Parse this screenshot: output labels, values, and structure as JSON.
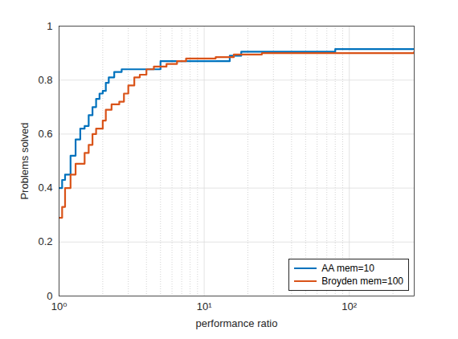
{
  "chart_data": {
    "type": "line",
    "x_label": "performance ratio",
    "y_label": "Problems solved",
    "log": "x",
    "grid": true,
    "legend": "southeast",
    "xlim": [
      1,
      280
    ],
    "xticks": [
      {
        "value": 1,
        "label": "10⁰"
      },
      {
        "value": 10,
        "label": "10¹"
      },
      {
        "value": 100,
        "label": "10²"
      }
    ],
    "ylim": [
      0,
      1
    ],
    "yticks": [
      0,
      0.2,
      0.4,
      0.6,
      0.8,
      1
    ],
    "series": [
      {
        "name": "AA mem=10",
        "color": "#0072bd",
        "line_style": "step",
        "x": [
          1,
          1.05,
          1.1,
          1.2,
          1.3,
          1.4,
          1.5,
          1.6,
          1.7,
          1.8,
          1.9,
          2.0,
          2.1,
          2.2,
          2.4,
          2.7,
          5.0,
          15,
          18,
          80,
          280
        ],
        "values": [
          0.4,
          0.43,
          0.45,
          0.52,
          0.58,
          0.62,
          0.63,
          0.67,
          0.7,
          0.73,
          0.75,
          0.76,
          0.79,
          0.81,
          0.83,
          0.84,
          0.87,
          0.89,
          0.905,
          0.915,
          0.915
        ]
      },
      {
        "name": "Broyden mem=100",
        "color": "#d95319",
        "line_style": "step",
        "x": [
          1,
          1.05,
          1.1,
          1.2,
          1.3,
          1.5,
          1.6,
          1.7,
          1.8,
          2.0,
          2.1,
          2.3,
          2.6,
          2.8,
          3.0,
          3.3,
          3.6,
          4.0,
          4.5,
          5.5,
          6.5,
          7.5,
          12,
          16,
          25,
          280
        ],
        "values": [
          0.29,
          0.33,
          0.4,
          0.45,
          0.49,
          0.53,
          0.56,
          0.6,
          0.62,
          0.65,
          0.69,
          0.71,
          0.72,
          0.75,
          0.78,
          0.81,
          0.82,
          0.84,
          0.85,
          0.86,
          0.87,
          0.88,
          0.885,
          0.895,
          0.9,
          0.905
        ]
      }
    ]
  }
}
